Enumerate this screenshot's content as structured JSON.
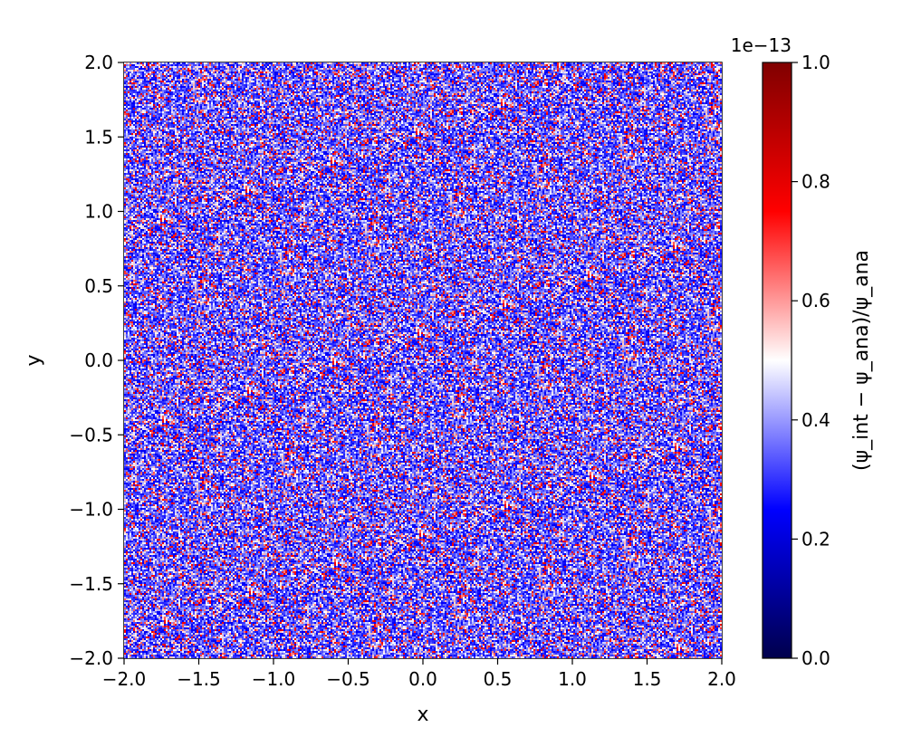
{
  "chart_data": {
    "type": "heatmap",
    "title": "",
    "xlabel": "x",
    "ylabel": "y",
    "xlim": [
      -2.0,
      2.0
    ],
    "ylim": [
      -2.0,
      2.0
    ],
    "x_ticks": [
      "−2.0",
      "−1.5",
      "−1.0",
      "−0.5",
      "0.0",
      "0.5",
      "1.0",
      "1.5",
      "2.0"
    ],
    "x_tick_values": [
      -2.0,
      -1.5,
      -1.0,
      -0.5,
      0.0,
      0.5,
      1.0,
      1.5,
      2.0
    ],
    "y_ticks": [
      "−2.0",
      "−1.5",
      "−1.0",
      "−0.5",
      "0.0",
      "0.5",
      "1.0",
      "1.5",
      "2.0"
    ],
    "y_tick_values": [
      -2.0,
      -1.5,
      -1.0,
      -0.5,
      0.0,
      0.5,
      1.0,
      1.5,
      2.0
    ],
    "grid": false,
    "colormap": "seismic",
    "colormap_stops": [
      "#00004c",
      "#0000ff",
      "#ffffff",
      "#ff0000",
      "#800000"
    ],
    "value_range": [
      0.0,
      1.0
    ],
    "value_description": "dense noise-like field of relative error values; mostly blue (about 0.2–0.4) with scattered white and red pixels",
    "colorbar": {
      "label": "(ψ_int − ψ_ana)/ψ_ana",
      "offset_text": "1e−13",
      "ticks": [
        "0.0",
        "0.2",
        "0.4",
        "0.6",
        "0.8",
        "1.0"
      ],
      "tick_values": [
        0.0,
        0.2,
        0.4,
        0.6,
        0.8,
        1.0
      ]
    }
  }
}
